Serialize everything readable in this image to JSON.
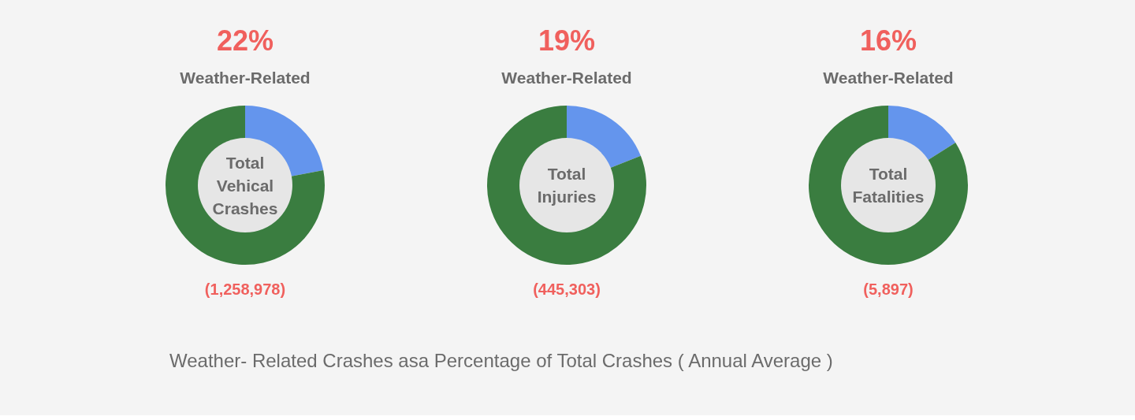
{
  "chart_data": [
    {
      "type": "donut",
      "title": "22%",
      "subtitle": "Weather-Related",
      "categories": [
        null,
        null
      ],
      "values": [
        22,
        78
      ],
      "colors": [
        "#6495ed",
        "#3a7d40"
      ],
      "legend": false,
      "annotations": [
        "Total Vehical Crashes",
        "(1,258,978)",
        "Weather- Related Crashes asa Percentage of Total Crashes ( Annual Average )"
      ]
    },
    {
      "type": "donut",
      "title": "19%",
      "subtitle": "Weather-Related",
      "categories": [
        null,
        null
      ],
      "values": [
        19,
        81
      ],
      "colors": [
        "#6495ed",
        "#3a7d40"
      ],
      "legend": false,
      "annotations": [
        "Total Injuries",
        "(445,303)"
      ]
    },
    {
      "type": "donut",
      "title": "16%",
      "subtitle": "Weather-Related",
      "categories": [
        null,
        null
      ],
      "values": [
        16,
        84
      ],
      "colors": [
        "#6495ed",
        "#3a7d40"
      ],
      "legend": false,
      "annotations": [
        "Total Fatalities",
        "(5,897)"
      ]
    }
  ]
}
